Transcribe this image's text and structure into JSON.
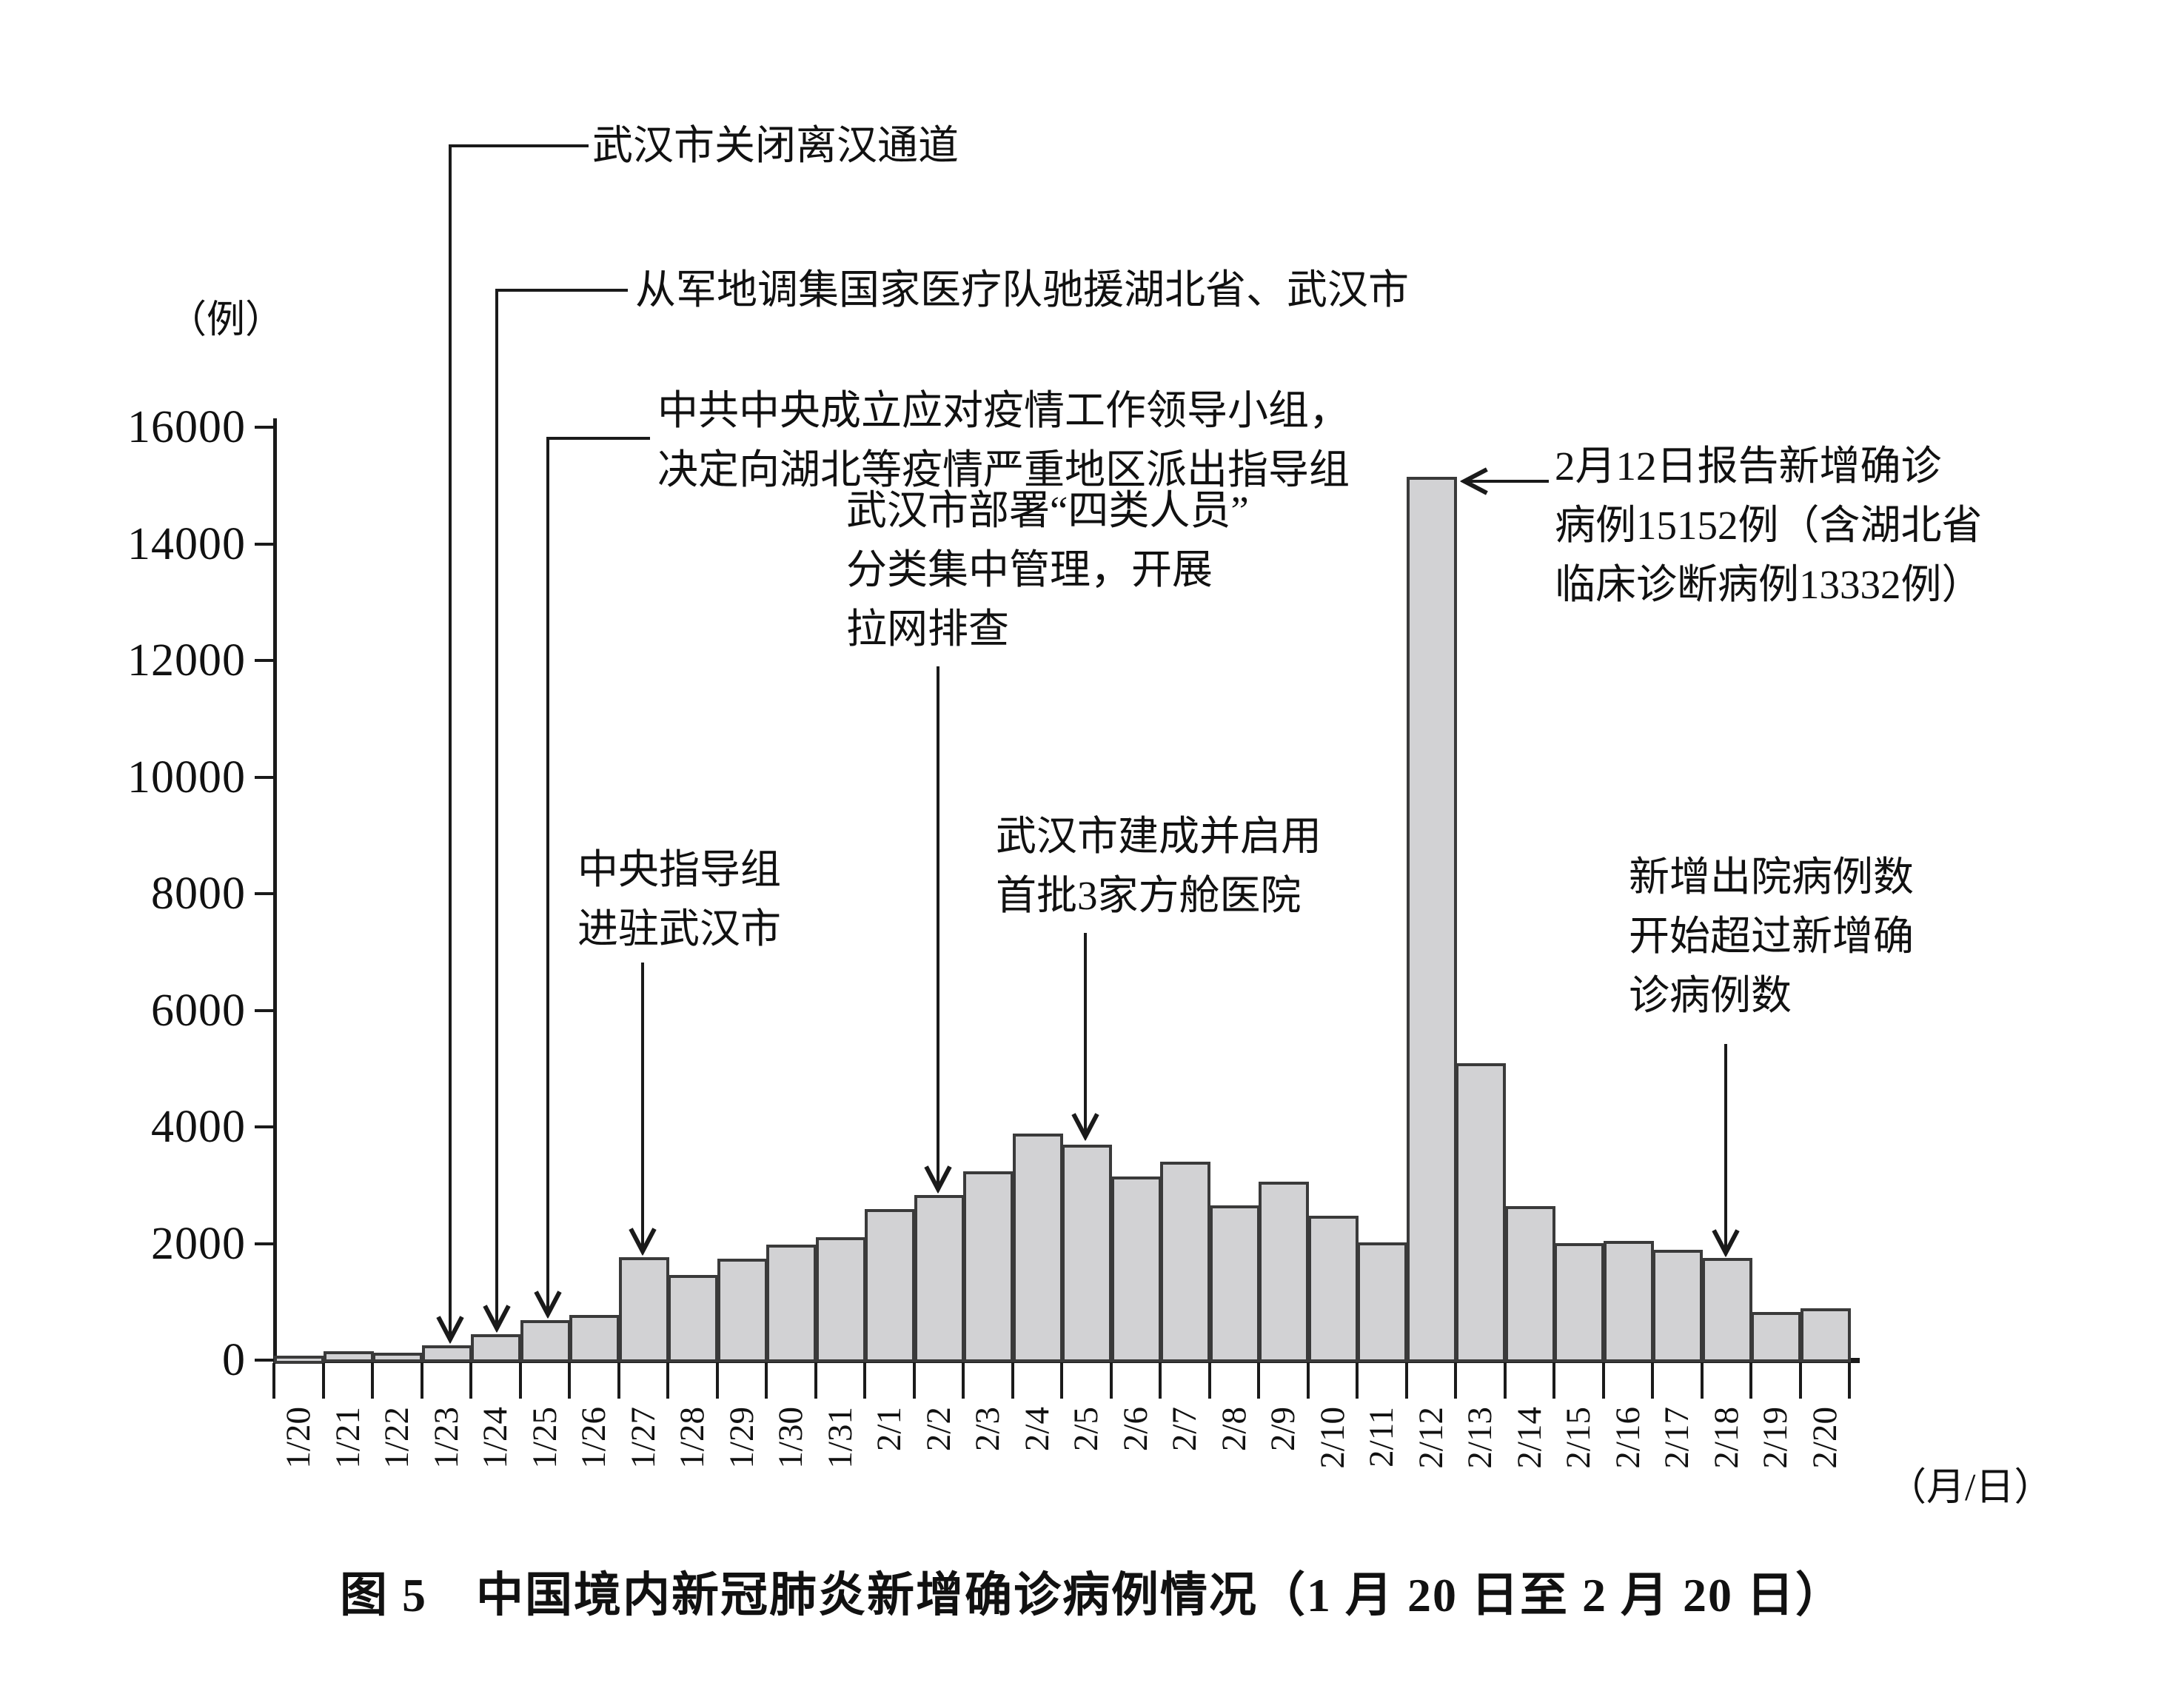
{
  "figure": {
    "y_unit_label": "（例）",
    "x_unit_label": "（月/日）",
    "caption": "图 5　中国境内新冠肺炎新增确诊病例情况（1 月 20 日至 2 月 20 日）"
  },
  "chart_data": {
    "type": "bar",
    "title": "中国境内新冠肺炎新增确诊病例情况（1月20日至2月20日）",
    "ylabel": "（例）",
    "xlabel": "（月/日）",
    "ylim": [
      0,
      16000
    ],
    "ytick_step": 2000,
    "yticks": [
      0,
      2000,
      4000,
      6000,
      8000,
      10000,
      12000,
      14000,
      16000
    ],
    "grid": false,
    "legend": "none",
    "bar_fill": "#d2d2d4",
    "bar_border": "#3a3a3a",
    "categories": [
      "1/20",
      "1/21",
      "1/22",
      "1/23",
      "1/24",
      "1/25",
      "1/26",
      "1/27",
      "1/28",
      "1/29",
      "1/30",
      "1/31",
      "2/1",
      "2/2",
      "2/3",
      "2/4",
      "2/5",
      "2/6",
      "2/7",
      "2/8",
      "2/9",
      "2/10",
      "2/11",
      "2/12",
      "2/13",
      "2/14",
      "2/15",
      "2/16",
      "2/17",
      "2/18",
      "2/19",
      "2/20"
    ],
    "values": [
      77,
      149,
      131,
      259,
      444,
      688,
      769,
      1771,
      1459,
      1737,
      1982,
      2102,
      2590,
      2829,
      3235,
      3887,
      3694,
      3143,
      3399,
      2656,
      3062,
      2478,
      2015,
      15152,
      5090,
      2641,
      2009,
      2048,
      1886,
      1749,
      820,
      889
    ],
    "annotations": [
      {
        "id": "wuhan-lockdown",
        "target": "1/23",
        "text": "武汉市关闭离汉通道"
      },
      {
        "id": "medical-teams",
        "target": "1/24",
        "text": "从军地调集国家医疗队驰援湖北省、武汉市"
      },
      {
        "id": "leading-group",
        "target": "1/25",
        "text": "中共中央成立应对疫情工作领导小组，\n决定向湖北等疫情严重地区派出指导组"
      },
      {
        "id": "guidance-group",
        "target": "1/27",
        "text": "中央指导组\n进驻武汉市"
      },
      {
        "id": "four-categories",
        "target": "2/2",
        "text": "武汉市部署“四类人员”\n分类集中管理，开展\n拉网排查"
      },
      {
        "id": "fangcang-hospitals",
        "target": "2/5",
        "text": "武汉市建成并启用\n首批3家方舱医院"
      },
      {
        "id": "feb12-spike",
        "target": "2/12",
        "text": "2月12日报告新增确诊\n病例15152例（含湖北省\n临床诊断病例13332例）"
      },
      {
        "id": "discharge-exceeds",
        "target": "2/18",
        "text": "新增出院病例数\n开始超过新增确\n诊病例数"
      }
    ]
  }
}
